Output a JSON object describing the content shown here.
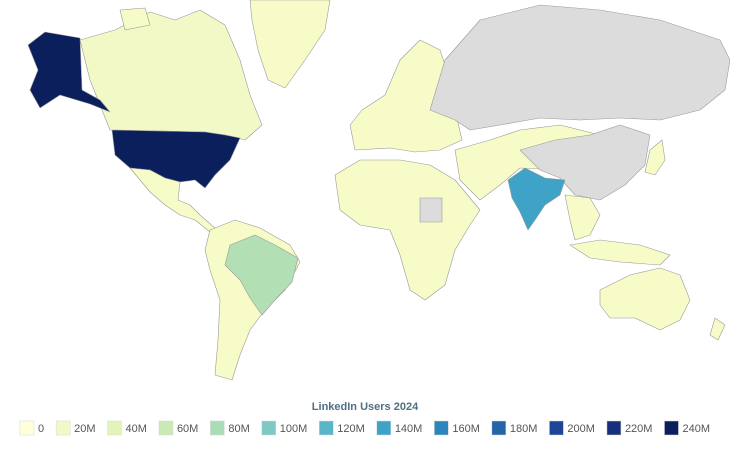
{
  "chart_data": {
    "type": "choropleth",
    "legend_title": "LinkedIn Users 2024",
    "scale": [
      0,
      {
        "value": 20000000,
        "label": "20M"
      },
      {
        "value": 40000000,
        "label": "40M"
      },
      {
        "value": 60000000,
        "label": "60M"
      },
      {
        "value": 80000000,
        "label": "80M"
      },
      {
        "value": 100000000,
        "label": "100M"
      },
      {
        "value": 120000000,
        "label": "120M"
      },
      {
        "value": 140000000,
        "label": "140M"
      },
      {
        "value": 160000000,
        "label": "160M"
      },
      {
        "value": 180000000,
        "label": "180M"
      },
      {
        "value": 200000000,
        "label": "200M"
      },
      {
        "value": 220000000,
        "label": "220M"
      },
      {
        "value": 240000000,
        "label": "240M"
      }
    ],
    "colors": [
      "#ffffd9",
      "#f3f9c6",
      "#e3f4b8",
      "#c9eab4",
      "#a9ddb6",
      "#7fc8c4",
      "#5ab6c6",
      "#3ea3c7",
      "#2c86bd",
      "#2464a9",
      "#1d4796",
      "#172f7c",
      "#0b1f5c"
    ]
  }
}
